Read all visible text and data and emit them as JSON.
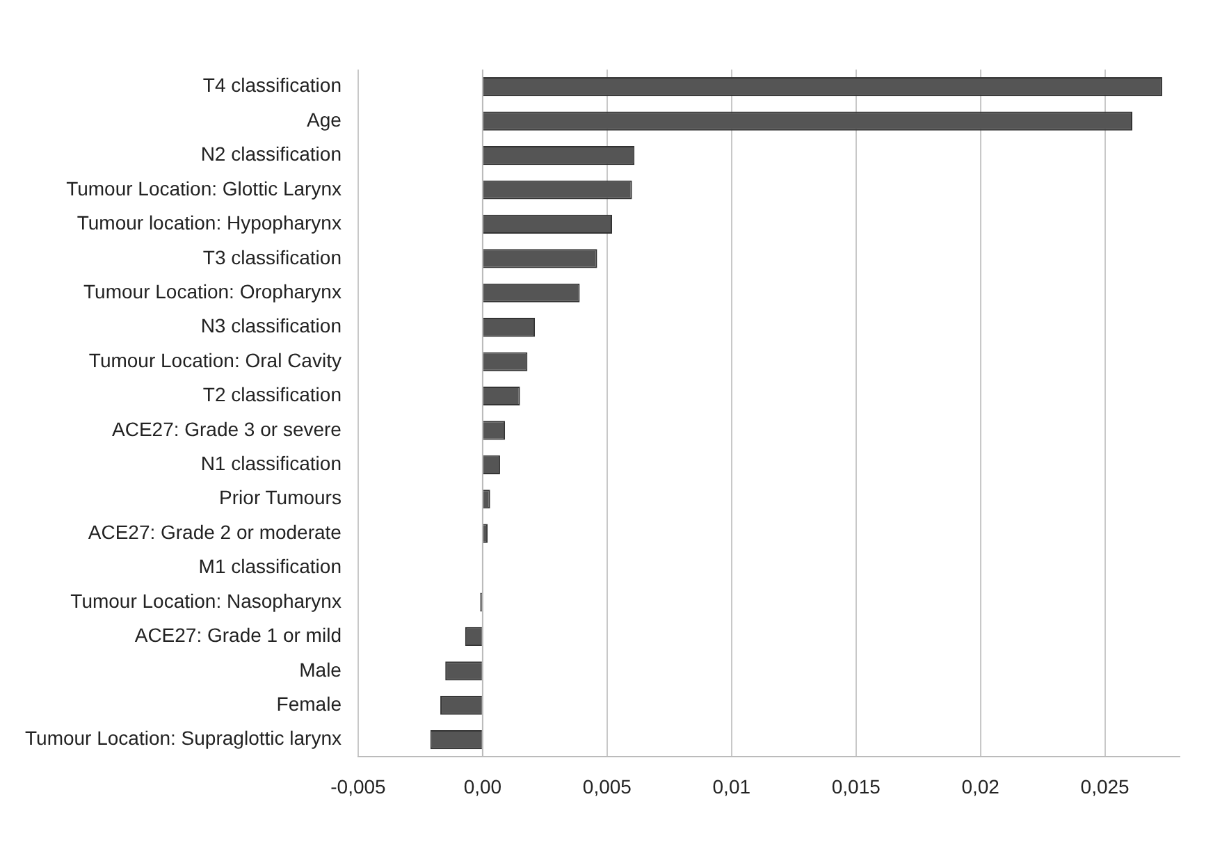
{
  "chart_data": {
    "type": "bar",
    "orientation": "horizontal",
    "categories": [
      "T4 classification",
      "Age",
      "N2 classification",
      "Tumour Location: Glottic Larynx",
      "Tumour location: Hypopharynx",
      "T3 classification",
      "Tumour Location: Oropharynx",
      "N3 classification",
      "Tumour Location: Oral Cavity",
      "T2 classification",
      "ACE27: Grade 3 or severe",
      "N1 classification",
      "Prior Tumours",
      "ACE27: Grade 2 or moderate",
      "M1 classification",
      "Tumour Location: Nasopharynx",
      "ACE27: Grade 1 or mild",
      "Male",
      "Female",
      "Tumour Location: Supraglottic larynx"
    ],
    "values": [
      0.0273,
      0.0261,
      0.0061,
      0.006,
      0.0052,
      0.0046,
      0.0039,
      0.0021,
      0.0018,
      0.0015,
      0.0009,
      0.0007,
      0.0003,
      0.0002,
      0,
      -0.0001,
      -0.0007,
      -0.0015,
      -0.0017,
      -0.0021
    ],
    "color": "#555555",
    "xlim": [
      -0.005,
      0.028
    ],
    "xticks": [
      {
        "value": -0.005,
        "label": "-0,005"
      },
      {
        "value": 0,
        "label": "0,00"
      },
      {
        "value": 0.005,
        "label": "0,005"
      },
      {
        "value": 0.01,
        "label": "0,01"
      },
      {
        "value": 0.015,
        "label": "0,015"
      },
      {
        "value": 0.02,
        "label": "0,02"
      },
      {
        "value": 0.025,
        "label": "0,025"
      }
    ],
    "grid": "x",
    "legend": false
  }
}
